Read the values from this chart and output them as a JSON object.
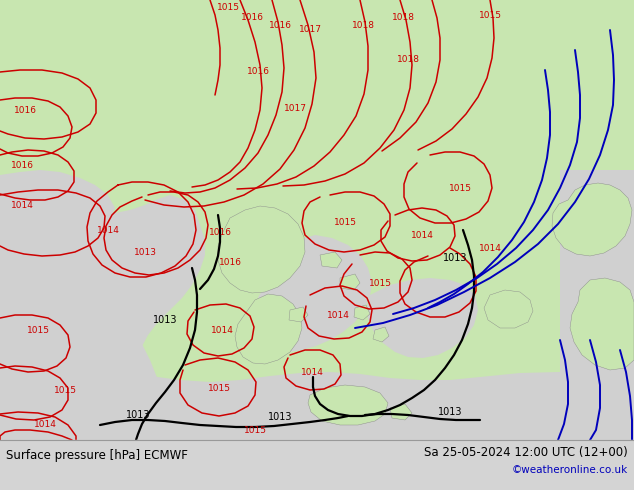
{
  "title_left": "Surface pressure [hPa] ECMWF",
  "title_right": "Sa 25-05-2024 12:00 UTC (12+00)",
  "credit": "©weatheronline.co.uk",
  "bg_color": "#d4d4d4",
  "land_green": "#c8e6b0",
  "sea_gray": "#d0d0d0",
  "red": "#cc0000",
  "black": "#000000",
  "blue": "#0000bb",
  "figsize": [
    6.34,
    4.9
  ],
  "dpi": 100
}
